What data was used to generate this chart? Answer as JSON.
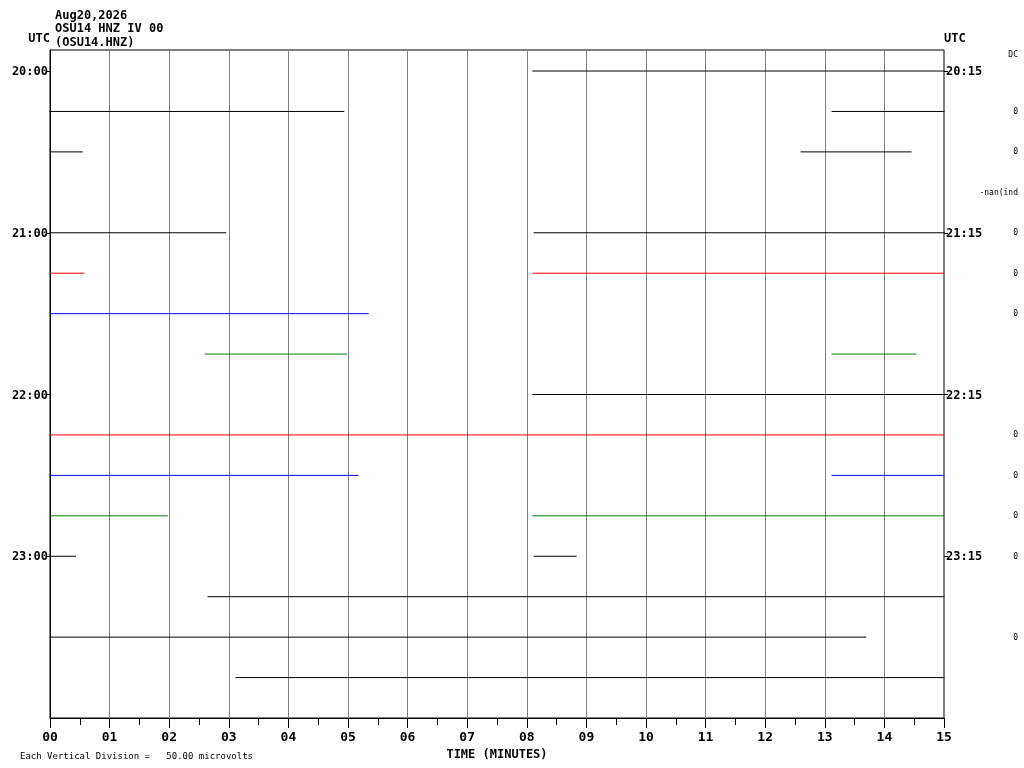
{
  "chart_data": {
    "type": "line",
    "title": "Aug20,2026",
    "subtitle": "OSU14 HNZ IV 00\n(OSU14.HNZ)",
    "xlabel": "TIME (MINUTES)",
    "ylabel": "UTC",
    "y2label": "UTC",
    "xlim": [
      0,
      15
    ],
    "xticks": [
      {
        "value": 0,
        "label": "00"
      },
      {
        "value": 1,
        "label": "01"
      },
      {
        "value": 2,
        "label": "02"
      },
      {
        "value": 3,
        "label": "03"
      },
      {
        "value": 4,
        "label": "04"
      },
      {
        "value": 5,
        "label": "05"
      },
      {
        "value": 6,
        "label": "06"
      },
      {
        "value": 7,
        "label": "07"
      },
      {
        "value": 8,
        "label": "08"
      },
      {
        "value": 9,
        "label": "09"
      },
      {
        "value": 10,
        "label": "10"
      },
      {
        "value": 11,
        "label": "11"
      },
      {
        "value": 12,
        "label": "12"
      },
      {
        "value": 13,
        "label": "13"
      },
      {
        "value": 14,
        "label": "14"
      },
      {
        "value": 15,
        "label": "15"
      }
    ],
    "ylim": [
      24.0,
      19.87
    ],
    "yticks": [
      {
        "value": 20,
        "label": "20:00"
      },
      {
        "value": 21,
        "label": "21:00"
      },
      {
        "value": 22,
        "label": "22:00"
      },
      {
        "value": 23,
        "label": "23:00"
      }
    ],
    "y2lim": [
      24.25,
      20.12
    ],
    "y2ticks": [
      {
        "value": 20.25,
        "label": "20:15"
      },
      {
        "value": 21.25,
        "label": "21:15"
      },
      {
        "value": 22.25,
        "label": "22:15"
      },
      {
        "value": 23.25,
        "label": "23:15"
      }
    ],
    "grid": "x",
    "series": [
      {
        "color": "#000000",
        "x": [
          8.1,
          15
        ],
        "values": [
          20,
          20
        ]
      },
      {
        "color": "#000000",
        "x": [
          0,
          4.93
        ],
        "values": [
          20.25,
          20.25
        ]
      },
      {
        "color": "#000000",
        "x": [
          13.12,
          15
        ],
        "values": [
          20.25,
          20.25
        ]
      },
      {
        "color": "#000000",
        "x": [
          0,
          0.54
        ],
        "values": [
          20.5,
          20.5
        ]
      },
      {
        "color": "#000000",
        "x": [
          12.6,
          14.45
        ],
        "values": [
          20.5,
          20.5
        ]
      },
      {
        "color": "#000000",
        "x": [
          0,
          2.95
        ],
        "values": [
          21,
          21
        ]
      },
      {
        "color": "#000000",
        "x": [
          8.12,
          15
        ],
        "values": [
          21,
          21
        ]
      },
      {
        "color": "#ff0000",
        "x": [
          0,
          0.57
        ],
        "values": [
          21.25,
          21.25
        ]
      },
      {
        "color": "#ff0000",
        "x": [
          8.1,
          15
        ],
        "values": [
          21.25,
          21.25
        ]
      },
      {
        "color": "#0000ff",
        "x": [
          0,
          5.34
        ],
        "values": [
          21.5,
          21.5
        ]
      },
      {
        "color": "#008000",
        "x": [
          2.6,
          4.98
        ],
        "values": [
          21.75,
          21.75
        ]
      },
      {
        "color": "#008000",
        "x": [
          13.12,
          14.53
        ],
        "values": [
          21.75,
          21.75
        ]
      },
      {
        "color": "#000000",
        "x": [
          8.1,
          15
        ],
        "values": [
          22,
          22
        ]
      },
      {
        "color": "#ff0000",
        "x": [
          0,
          15
        ],
        "values": [
          22.25,
          22.25
        ]
      },
      {
        "color": "#0000ff",
        "x": [
          0,
          5.17
        ],
        "values": [
          22.5,
          22.5
        ]
      },
      {
        "color": "#0000ff",
        "x": [
          13.12,
          15
        ],
        "values": [
          22.5,
          22.5
        ]
      },
      {
        "color": "#008000",
        "x": [
          0,
          1.97
        ],
        "values": [
          22.75,
          22.75
        ]
      },
      {
        "color": "#008000",
        "x": [
          8.1,
          15
        ],
        "values": [
          22.75,
          22.75
        ]
      },
      {
        "color": "#000000",
        "x": [
          0,
          0.43
        ],
        "values": [
          23,
          23
        ]
      },
      {
        "color": "#000000",
        "x": [
          8.12,
          8.83
        ],
        "values": [
          23,
          23
        ]
      },
      {
        "color": "#000000",
        "x": [
          2.65,
          15
        ],
        "values": [
          23.25,
          23.25
        ]
      },
      {
        "color": "#000000",
        "x": [
          0,
          13.69
        ],
        "values": [
          23.5,
          23.5
        ]
      },
      {
        "color": "#000000",
        "x": [
          3.12,
          15
        ],
        "values": [
          23.75,
          23.75
        ]
      }
    ],
    "annotations": [
      "Each Vertical Division =   50.00 microvolts",
      "DC",
      "0",
      "0",
      "-nan(ind",
      "0",
      "0",
      "0",
      "0",
      "0",
      "0",
      "0",
      "0"
    ]
  }
}
